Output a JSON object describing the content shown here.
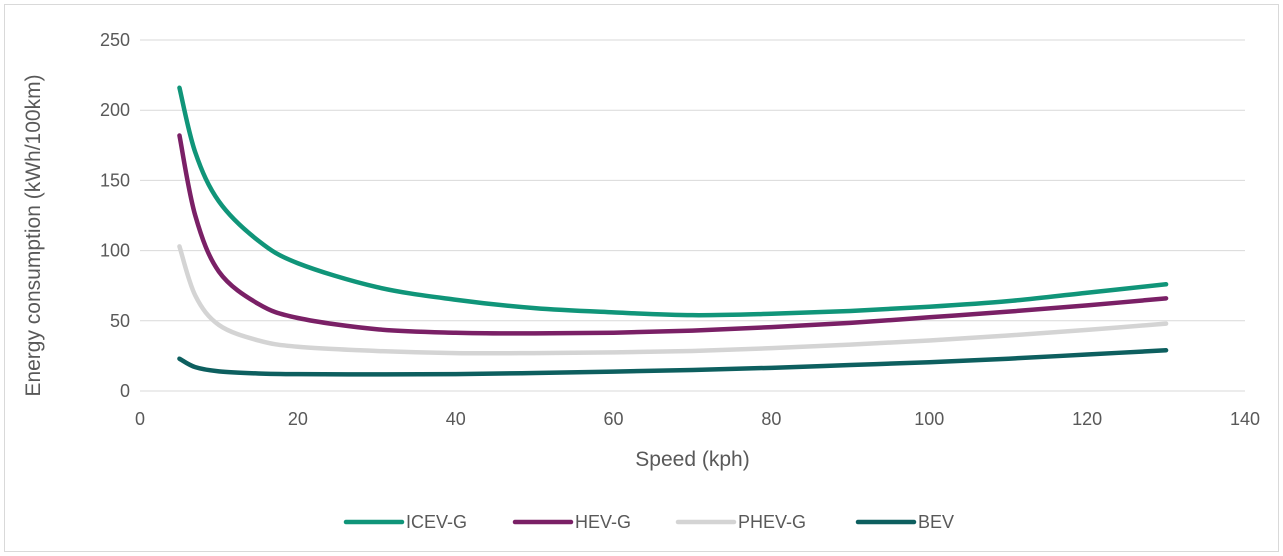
{
  "chart_data": {
    "type": "line",
    "title": "",
    "xlabel": "Speed (kph)",
    "ylabel": "Energy consumption (kWh/100km)",
    "xlim": [
      0,
      140
    ],
    "ylim": [
      0,
      250
    ],
    "x_ticks": [
      "0",
      "20",
      "40",
      "60",
      "80",
      "100",
      "120",
      "140"
    ],
    "y_ticks": [
      "0",
      "50",
      "100",
      "150",
      "200",
      "250"
    ],
    "grid": "horizontal",
    "legend_position": "bottom",
    "x": [
      5,
      7,
      10,
      15,
      20,
      30,
      40,
      50,
      60,
      70,
      80,
      90,
      100,
      110,
      120,
      130
    ],
    "series": [
      {
        "name": "ICEV-G",
        "color": "#109579",
        "values": [
          216,
          170,
          135,
          107,
          91,
          74,
          65,
          59,
          56,
          54,
          55,
          57,
          60,
          64,
          70,
          76
        ]
      },
      {
        "name": "HEV-G",
        "color": "#7a2066",
        "values": [
          182,
          125,
          85,
          62,
          52,
          44,
          41.5,
          41,
          41.5,
          43,
          45.5,
          48.5,
          52.5,
          56.5,
          61,
          66
        ]
      },
      {
        "name": "PHEV-G",
        "color": "#d4d4d4",
        "values": [
          103,
          68,
          47,
          36,
          31.5,
          28.5,
          27,
          27,
          27.5,
          28.5,
          30.5,
          33,
          36,
          39.5,
          43.5,
          48
        ]
      },
      {
        "name": "BEV",
        "color": "#0d5f5f",
        "values": [
          23,
          17,
          14,
          12.5,
          12,
          11.8,
          12,
          12.8,
          13.8,
          15,
          16.5,
          18.5,
          20.5,
          23,
          26,
          29
        ]
      }
    ]
  }
}
